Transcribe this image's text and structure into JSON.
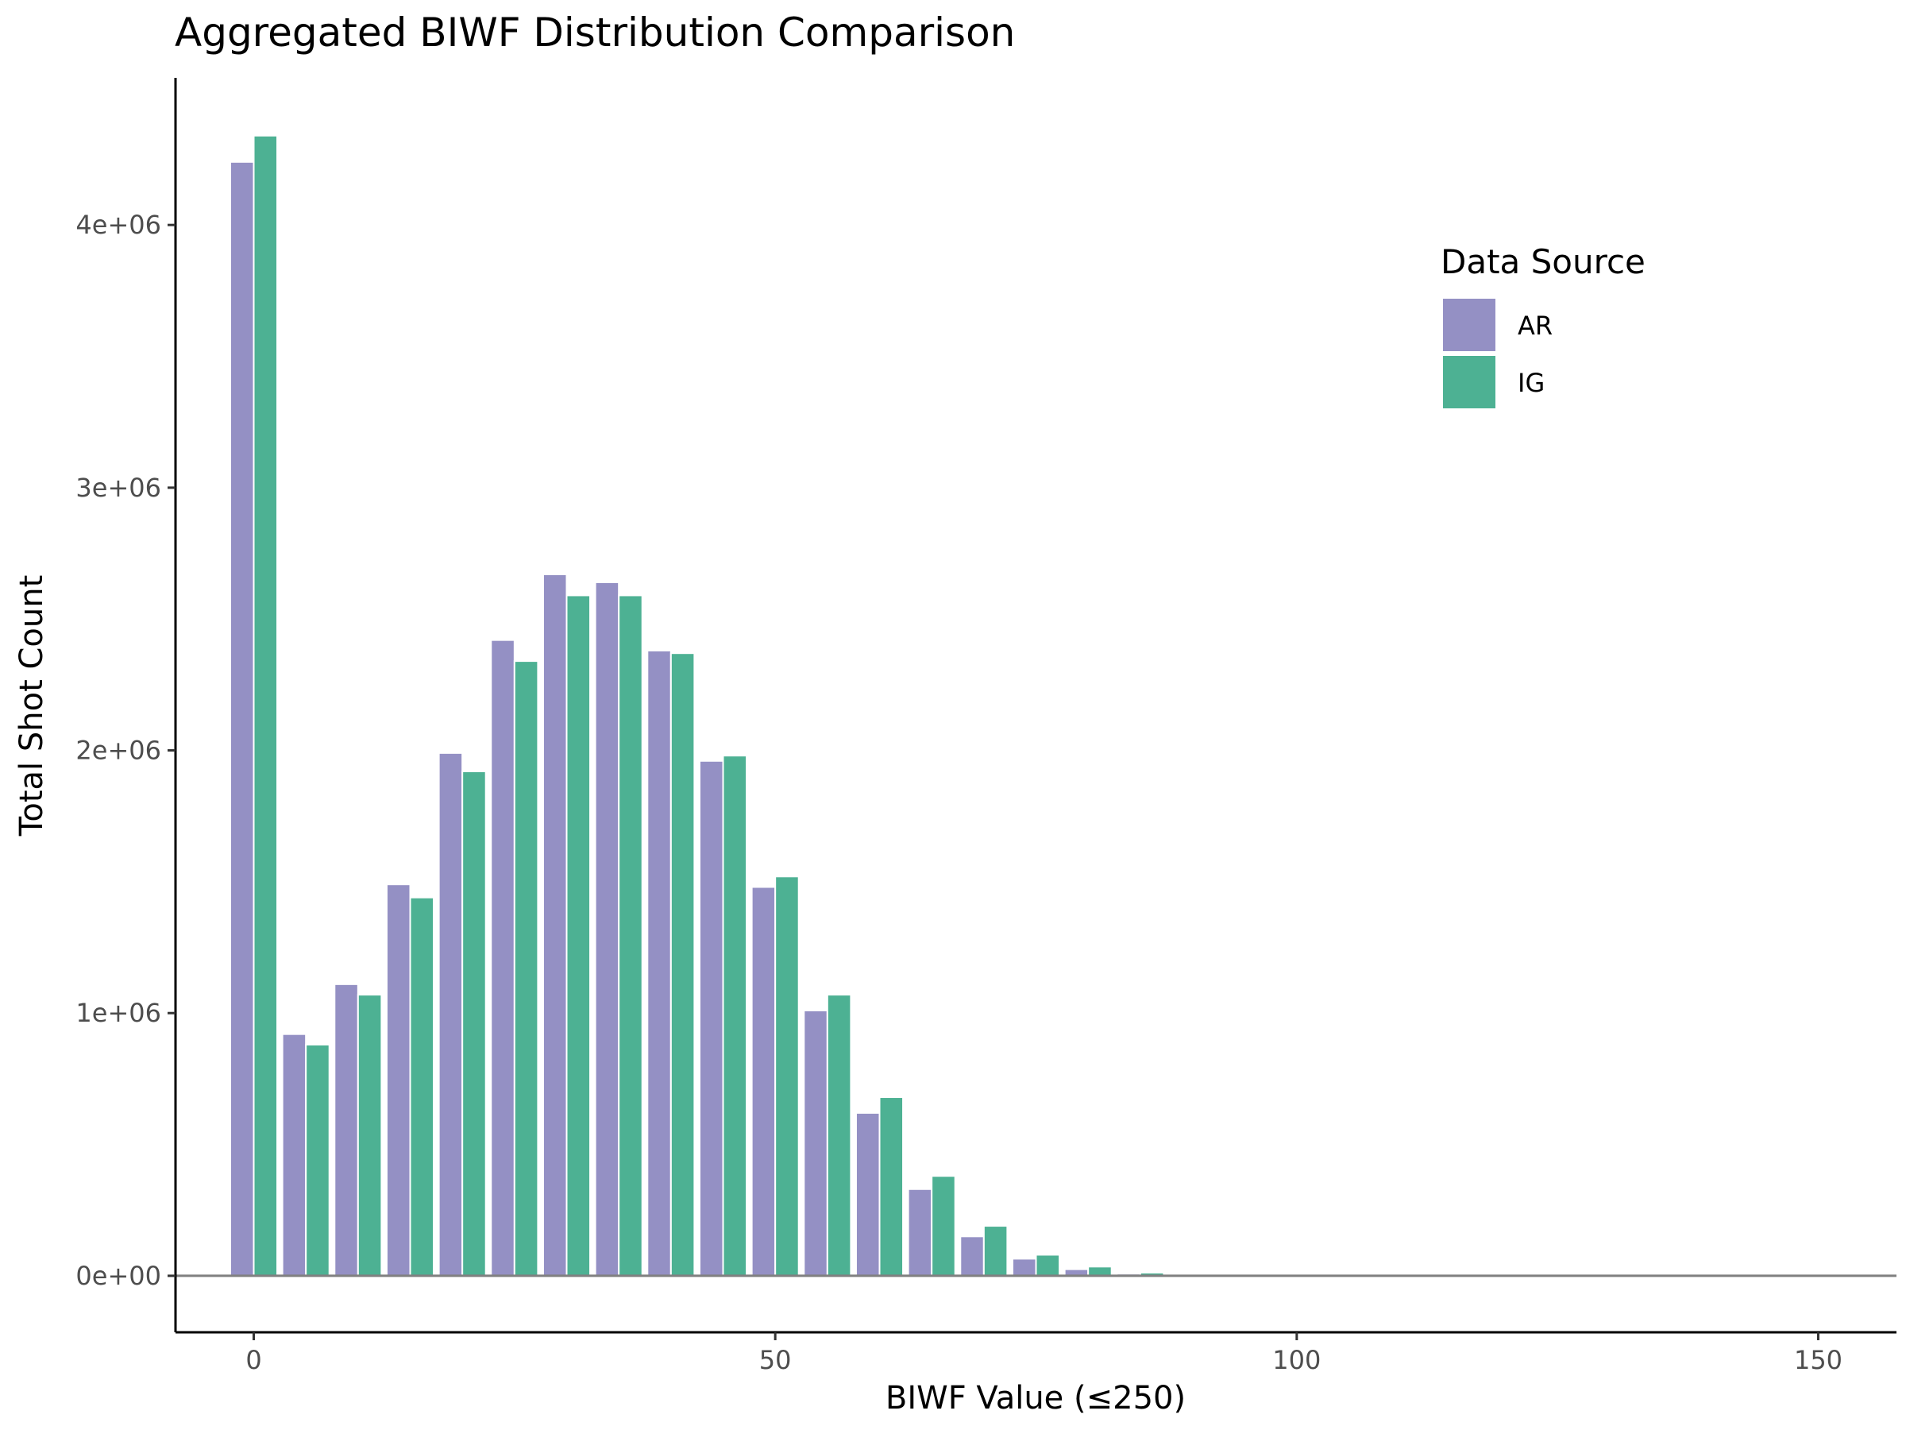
{
  "chart_data": {
    "type": "bar",
    "title": "Aggregated BIWF Distribution Comparison",
    "xlabel": "BIWF Value (≤250)",
    "ylabel": "Total Shot Count",
    "bin_width": 5,
    "x": [
      0,
      5,
      10,
      15,
      20,
      25,
      30,
      35,
      40,
      45,
      50,
      55,
      60,
      65,
      70,
      75,
      80,
      85,
      90,
      95,
      100,
      105,
      110,
      115,
      120,
      125,
      130,
      135,
      140,
      145,
      150,
      155
    ],
    "series": [
      {
        "name": "AR",
        "color": "#9490c4",
        "values": [
          4240000,
          920000,
          1110000,
          1490000,
          1990000,
          2420000,
          2670000,
          2640000,
          2380000,
          1960000,
          1480000,
          1010000,
          620000,
          330000,
          150000,
          65000,
          25000,
          8000,
          2000,
          0,
          0,
          0,
          0,
          0,
          0,
          0,
          0,
          0,
          0,
          0,
          0,
          0
        ]
      },
      {
        "name": "IG",
        "color": "#4db193",
        "values": [
          4340000,
          880000,
          1070000,
          1440000,
          1920000,
          2340000,
          2590000,
          2590000,
          2370000,
          1980000,
          1520000,
          1070000,
          680000,
          380000,
          190000,
          80000,
          35000,
          12000,
          3000,
          0,
          0,
          0,
          0,
          0,
          0,
          0,
          0,
          0,
          0,
          0,
          0,
          0
        ]
      }
    ],
    "x_ticks": [
      {
        "value": 0,
        "label": "0"
      },
      {
        "value": 50,
        "label": "50"
      },
      {
        "value": 100,
        "label": "100"
      },
      {
        "value": 150,
        "label": "150"
      }
    ],
    "y_ticks": [
      {
        "value": 0,
        "label": "0e+00"
      },
      {
        "value": 1000000,
        "label": "1e+06"
      },
      {
        "value": 2000000,
        "label": "2e+06"
      },
      {
        "value": 3000000,
        "label": "3e+06"
      },
      {
        "value": 4000000,
        "label": "4e+06"
      }
    ],
    "xlim": [
      -7.5,
      157.5
    ],
    "ylim": [
      -215000,
      4560000
    ],
    "hline": {
      "value": 0,
      "color": "#808080"
    },
    "legend": {
      "title": "Data Source",
      "position": "top-right"
    },
    "grid": false
  }
}
